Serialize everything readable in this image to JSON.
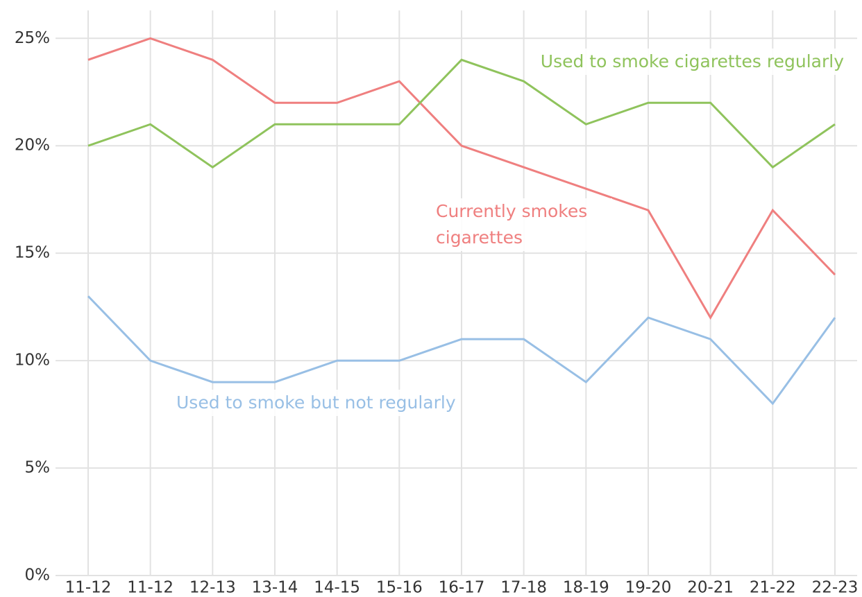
{
  "chart_data": {
    "type": "line",
    "categories": [
      "11-12",
      "11-12",
      "12-13",
      "13-14",
      "14-15",
      "15-16",
      "16-17",
      "17-18",
      "18-19",
      "19-20",
      "20-21",
      "21-22",
      "22-23"
    ],
    "series": [
      {
        "name": "Currently smokes cigarettes",
        "color": "#ef7f7f",
        "values": [
          24,
          25,
          24,
          22,
          22,
          23,
          20,
          19,
          18,
          17,
          12,
          17,
          14
        ]
      },
      {
        "name": "Used to smoke cigarettes regularly",
        "color": "#8fc35c",
        "values": [
          20,
          21,
          19,
          21,
          21,
          21,
          24,
          23,
          21,
          22,
          22,
          19,
          21
        ]
      },
      {
        "name": "Used to smoke but not regularly",
        "color": "#98bfe5",
        "values": [
          13,
          10,
          9,
          9,
          10,
          10,
          11,
          11,
          9,
          12,
          11,
          8,
          12
        ]
      }
    ],
    "ylim": [
      0,
      26.3
    ],
    "yticks": [
      {
        "value": 0,
        "label": "0%"
      },
      {
        "value": 5,
        "label": "5%"
      },
      {
        "value": 10,
        "label": "10%"
      },
      {
        "value": 15,
        "label": "15%"
      },
      {
        "value": 20,
        "label": "20%"
      },
      {
        "value": 25,
        "label": "25%"
      }
    ],
    "grid": true
  }
}
